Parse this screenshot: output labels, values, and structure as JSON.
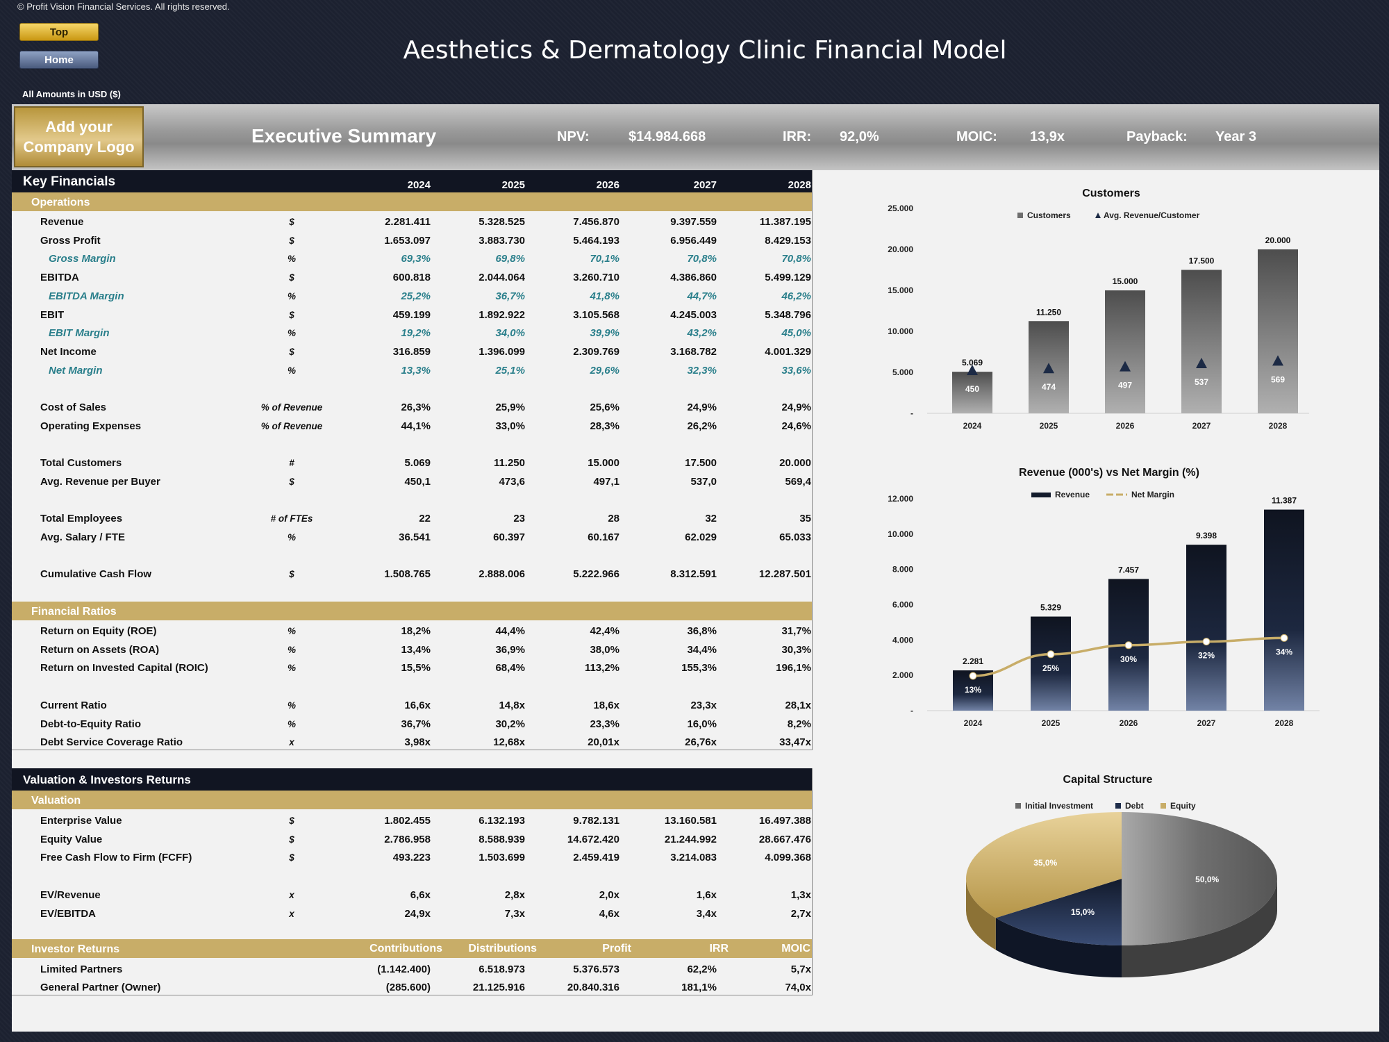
{
  "copyright": "© Profit Vision Financial Services. All rights reserved.",
  "nav": {
    "top": "Top",
    "home": "Home"
  },
  "title": "Aesthetics & Dermatology Clinic Financial Model",
  "amounts_note": "All Amounts in  USD ($)",
  "header": {
    "logo": "Add your Company Logo",
    "exec_title": "Executive Summary",
    "npv_label": "NPV:",
    "npv_value": "$14.984.668",
    "irr_label": "IRR:",
    "irr_value": "92,0%",
    "moic_label": "MOIC:",
    "moic_value": "13,9x",
    "payback_label": "Payback:",
    "payback_value": "Year 3"
  },
  "key_financials": {
    "title": "Key Financials",
    "years": [
      "2024",
      "2025",
      "2026",
      "2027",
      "2028"
    ],
    "operations_label": "Operations",
    "ratios_label": "Financial Ratios",
    "rows": [
      {
        "label": "Revenue",
        "unit": "$",
        "values": [
          "2.281.411",
          "5.328.525",
          "7.456.870",
          "9.397.559",
          "11.387.195"
        ]
      },
      {
        "label": "Gross Profit",
        "unit": "$",
        "values": [
          "1.653.097",
          "3.883.730",
          "5.464.193",
          "6.956.449",
          "8.429.153"
        ]
      },
      {
        "label": "Gross Margin",
        "unit": "%",
        "sub": true,
        "values": [
          "69,3%",
          "69,8%",
          "70,1%",
          "70,8%",
          "70,8%"
        ]
      },
      {
        "label": "EBITDA",
        "unit": "$",
        "values": [
          "600.818",
          "2.044.064",
          "3.260.710",
          "4.386.860",
          "5.499.129"
        ]
      },
      {
        "label": "EBITDA Margin",
        "unit": "%",
        "sub": true,
        "values": [
          "25,2%",
          "36,7%",
          "41,8%",
          "44,7%",
          "46,2%"
        ]
      },
      {
        "label": "EBIT",
        "unit": "$",
        "values": [
          "459.199",
          "1.892.922",
          "3.105.568",
          "4.245.003",
          "5.348.796"
        ]
      },
      {
        "label": "EBIT Margin",
        "unit": "%",
        "sub": true,
        "values": [
          "19,2%",
          "34,0%",
          "39,9%",
          "43,2%",
          "45,0%"
        ]
      },
      {
        "label": "Net Income",
        "unit": "$",
        "values": [
          "316.859",
          "1.396.099",
          "2.309.769",
          "3.168.782",
          "4.001.329"
        ]
      },
      {
        "label": "Net Margin",
        "unit": "%",
        "sub": true,
        "values": [
          "13,3%",
          "25,1%",
          "29,6%",
          "32,3%",
          "33,6%"
        ]
      },
      null,
      {
        "label": "Cost of Sales",
        "unit": "% of Revenue",
        "values": [
          "26,3%",
          "25,9%",
          "25,6%",
          "24,9%",
          "24,9%"
        ]
      },
      {
        "label": "Operating Expenses",
        "unit": "% of Revenue",
        "values": [
          "44,1%",
          "33,0%",
          "28,3%",
          "26,2%",
          "24,6%"
        ]
      },
      null,
      {
        "label": "Total Customers",
        "unit": "#",
        "values": [
          "5.069",
          "11.250",
          "15.000",
          "17.500",
          "20.000"
        ]
      },
      {
        "label": "Avg. Revenue per Buyer",
        "unit": "$",
        "values": [
          "450,1",
          "473,6",
          "497,1",
          "537,0",
          "569,4"
        ]
      },
      null,
      {
        "label": "Total Employees",
        "unit": "# of FTEs",
        "values": [
          "22",
          "23",
          "28",
          "32",
          "35"
        ]
      },
      {
        "label": "Avg. Salary / FTE",
        "unit": "%",
        "values": [
          "36.541",
          "60.397",
          "60.167",
          "62.029",
          "65.033"
        ]
      },
      null,
      {
        "label": "Cumulative Cash Flow",
        "unit": "$",
        "values": [
          "1.508.765",
          "2.888.006",
          "5.222.966",
          "8.312.591",
          "12.287.501"
        ]
      }
    ],
    "ratios": [
      {
        "label": "Return on Equity (ROE)",
        "unit": "%",
        "values": [
          "18,2%",
          "44,4%",
          "42,4%",
          "36,8%",
          "31,7%"
        ]
      },
      {
        "label": "Return on Assets (ROA)",
        "unit": "%",
        "values": [
          "13,4%",
          "36,9%",
          "38,0%",
          "34,4%",
          "30,3%"
        ]
      },
      {
        "label": "Return on Invested Capital (ROIC)",
        "unit": "%",
        "values": [
          "15,5%",
          "68,4%",
          "113,2%",
          "155,3%",
          "196,1%"
        ]
      },
      null,
      {
        "label": "Current Ratio",
        "unit": "%",
        "values": [
          "16,6x",
          "14,8x",
          "18,6x",
          "23,3x",
          "28,1x"
        ]
      },
      {
        "label": "Debt-to-Equity Ratio",
        "unit": "%",
        "values": [
          "36,7%",
          "30,2%",
          "23,3%",
          "16,0%",
          "8,2%"
        ]
      },
      {
        "label": "Debt Service Coverage Ratio",
        "unit": "x",
        "values": [
          "3,98x",
          "12,68x",
          "20,01x",
          "26,76x",
          "33,47x"
        ]
      }
    ]
  },
  "valuation": {
    "title": "Valuation & Investors Returns",
    "sub_label": "Valuation",
    "rows": [
      {
        "label": "Enterprise Value",
        "unit": "$",
        "values": [
          "1.802.455",
          "6.132.193",
          "9.782.131",
          "13.160.581",
          "16.497.388"
        ]
      },
      {
        "label": "Equity Value",
        "unit": "$",
        "values": [
          "2.786.958",
          "8.588.939",
          "14.672.420",
          "21.244.992",
          "28.667.476"
        ]
      },
      {
        "label": "Free Cash Flow to Firm (FCFF)",
        "unit": "$",
        "values": [
          "493.223",
          "1.503.699",
          "2.459.419",
          "3.214.083",
          "4.099.368"
        ]
      },
      null,
      {
        "label": "EV/Revenue",
        "unit": "x",
        "values": [
          "6,6x",
          "2,8x",
          "2,0x",
          "1,6x",
          "1,3x"
        ]
      },
      {
        "label": "EV/EBITDA",
        "unit": "x",
        "values": [
          "24,9x",
          "7,3x",
          "4,6x",
          "3,4x",
          "2,7x"
        ]
      }
    ],
    "investor_label": "Investor Returns",
    "investor_headers": [
      "Contributions",
      "Distributions",
      "Profit",
      "IRR",
      "MOIC"
    ],
    "investors": [
      {
        "label": "Limited Partners",
        "values": [
          "(1.142.400)",
          "6.518.973",
          "5.376.573",
          "62,2%",
          "5,7x"
        ]
      },
      {
        "label": "General Partner (Owner)",
        "values": [
          "(285.600)",
          "21.125.916",
          "20.840.316",
          "181,1%",
          "74,0x"
        ]
      }
    ]
  },
  "chart_data": [
    {
      "type": "bar",
      "title": "Customers",
      "categories": [
        "2024",
        "2025",
        "2026",
        "2027",
        "2028"
      ],
      "series": [
        {
          "name": "Customers",
          "values": [
            5069,
            11250,
            15000,
            17500,
            20000
          ],
          "labels": [
            "5.069",
            "11.250",
            "15.000",
            "17.500",
            "20.000"
          ]
        },
        {
          "name": "Avg. Revenue/Customer",
          "values": [
            450,
            474,
            497,
            537,
            569
          ],
          "labels": [
            "450",
            "474",
            "497",
            "537",
            "569"
          ]
        }
      ],
      "ylim": [
        0,
        25000
      ],
      "yticks": [
        "-",
        "5.000",
        "10.000",
        "15.000",
        "20.000",
        "25.000"
      ],
      "legend": "top",
      "colors": {
        "bar": "#6e6e6e",
        "marker": "#1c2a45"
      }
    },
    {
      "type": "bar",
      "title": "Revenue (000's) vs Net Margin (%)",
      "categories": [
        "2024",
        "2025",
        "2026",
        "2027",
        "2028"
      ],
      "series": [
        {
          "name": "Revenue",
          "values": [
            2281,
            5329,
            7457,
            9398,
            11387
          ],
          "labels": [
            "2.281",
            "5.329",
            "7.457",
            "9.398",
            "11.387"
          ]
        },
        {
          "name": "Net Margin",
          "values": [
            13,
            25,
            30,
            32,
            34
          ],
          "labels": [
            "13%",
            "25%",
            "30%",
            "32%",
            "34%"
          ]
        }
      ],
      "ylim": [
        0,
        12000
      ],
      "yticks": [
        "-",
        "2.000",
        "4.000",
        "6.000",
        "8.000",
        "10.000",
        "12.000"
      ],
      "legend": "top",
      "colors": {
        "bar": "#131b2c",
        "line": "#c8ad68"
      }
    },
    {
      "type": "pie",
      "title": "Capital Structure",
      "series": [
        {
          "name": "Initial Investment",
          "value": 50.0,
          "label": "50,0%",
          "color": "#6b6b6b"
        },
        {
          "name": "Debt",
          "value": 15.0,
          "label": "15,0%",
          "color": "#1e2d4a"
        },
        {
          "name": "Equity",
          "value": 35.0,
          "label": "35,0%",
          "color": "#c8ad68"
        }
      ],
      "legend": "top"
    }
  ]
}
